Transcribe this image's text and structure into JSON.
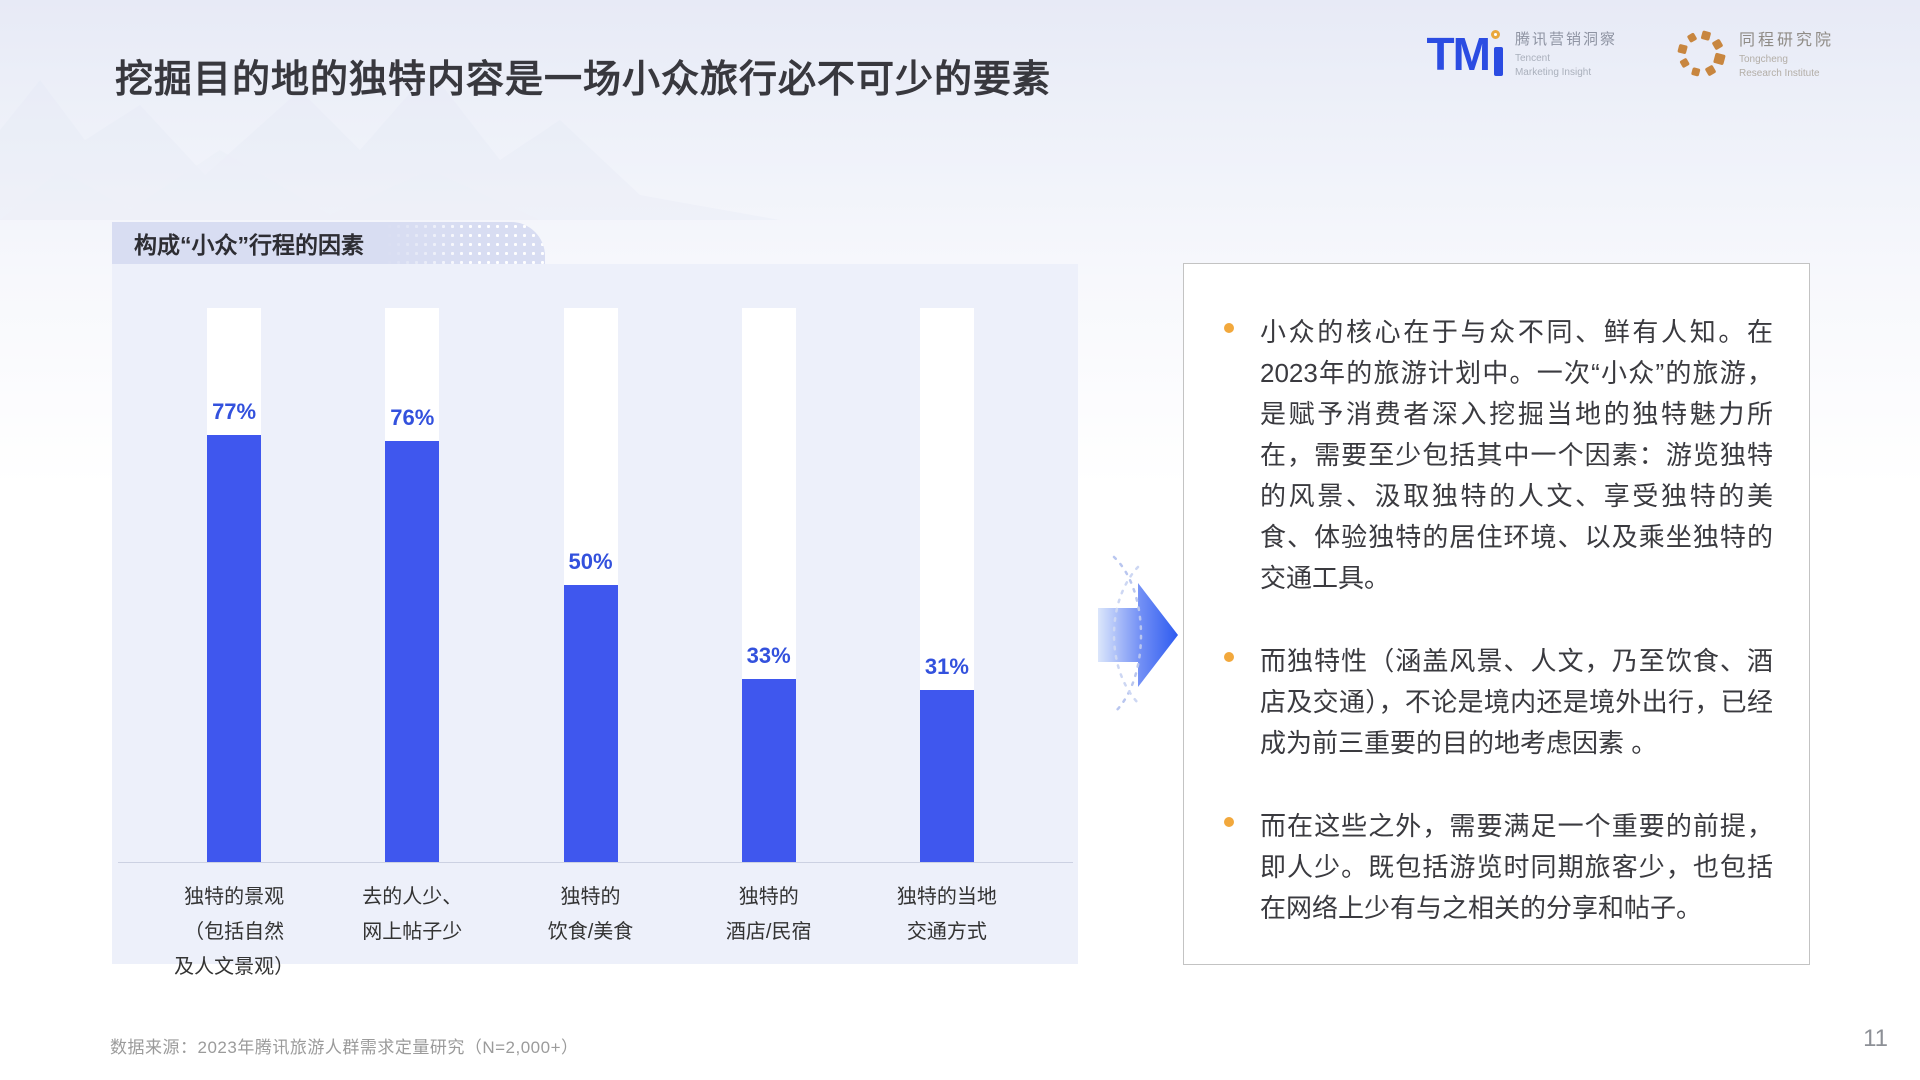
{
  "slide": {
    "title": "挖掘目的地的独特内容是一场小众旅行必不可少的要素",
    "source_note": "数据来源：2023年腾讯旅游人群需求定量研究（N=2,000+）",
    "page_number": "11"
  },
  "logos": {
    "tmi": {
      "abbr": "TM",
      "cn": "腾讯营销洞察",
      "en1": "Tencent",
      "en2": "Marketing Insight"
    },
    "tongcheng": {
      "cn": "同程研究院",
      "en1": "Tongcheng",
      "en2": "Research Institute"
    }
  },
  "chart_data": {
    "type": "bar",
    "title": "构成“小众”行程的因素",
    "categories": [
      "独特的景观（包括自然及人文景观）",
      "去的人少、网上帖子少",
      "独特的饮食/美食",
      "独特的酒店/民宿",
      "独特的当地交通方式"
    ],
    "values": [
      77,
      76,
      50,
      33,
      31
    ],
    "unit": "%",
    "ylim": [
      0,
      100
    ],
    "grid": false,
    "legend": false,
    "bar_color": "#3f57ee",
    "track_color": "#ffffff",
    "value_label_color": "#3351dd",
    "panel_background": "#edf0fa",
    "bars": [
      {
        "label_lines": [
          "独特的景观",
          "（包括自然",
          "及人文景观）"
        ],
        "value": 77,
        "label": "77%"
      },
      {
        "label_lines": [
          "去的人少、",
          "网上帖子少"
        ],
        "value": 76,
        "label": "76%"
      },
      {
        "label_lines": [
          "独特的",
          "饮食/美食"
        ],
        "value": 50,
        "label": "50%"
      },
      {
        "label_lines": [
          "独特的",
          "酒店/民宿"
        ],
        "value": 33,
        "label": "33%"
      },
      {
        "label_lines": [
          "独特的当地",
          "交通方式"
        ],
        "value": 31,
        "label": "31%"
      }
    ]
  },
  "insights": [
    "小众的核心在于与众不同、鲜有人知。在2023年的旅游计划中。一次“小众”的旅游，是赋予消费者深入挖掘当地的独特魅力所在，需要至少包括其中一个因素：游览独特的风景、汲取独特的人文、享受独特的美食、体验独特的居住环境、以及乘坐独特的交通工具。",
    "而独特性（涵盖风景、人文，乃至饮食、酒店及交通），不论是境内还是境外出行，已经成为前三重要的目的地考虑因素 。",
    "而在这些之外，需要满足一个重要的前提，即人少。既包括游览时同期旅客少，也包括在网络上少有与之相关的分享和帖子。"
  ],
  "colors": {
    "accent_blue": "#3f57ee",
    "value_label_blue": "#3351dd",
    "bullet_orange": "#f2a83c",
    "badge_lavender": "#d8ddf2",
    "tmi_blue": "#2b4ce2",
    "tongcheng_orange": "#c8863f"
  }
}
